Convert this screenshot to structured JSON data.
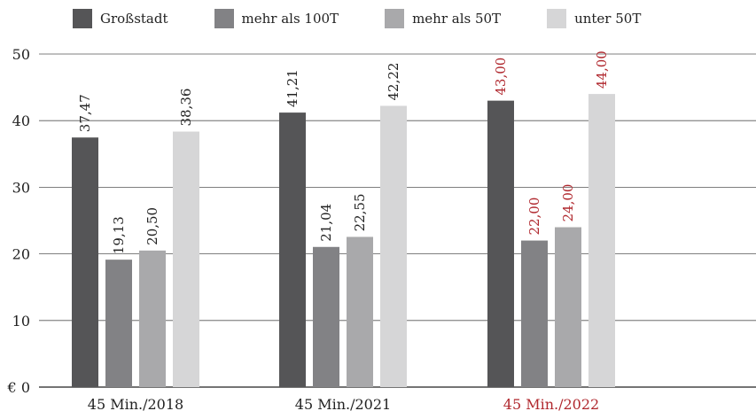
{
  "chart_data": {
    "type": "bar",
    "categories": [
      "45 Min./2018",
      "45 Min./2021",
      "45 Min./2022"
    ],
    "category_colors": [
      "#222222",
      "#222222",
      "#b0282e"
    ],
    "series": [
      {
        "name": "Großstadt",
        "color": "#555557",
        "values": [
          37.47,
          41.21,
          43.0
        ]
      },
      {
        "name": "mehr als 100T",
        "color": "#828285",
        "values": [
          19.13,
          21.04,
          22.0
        ]
      },
      {
        "name": "mehr als 50T",
        "color": "#a9a9ab",
        "values": [
          20.5,
          22.55,
          24.0
        ]
      },
      {
        "name": "unter 50T",
        "color": "#d6d6d7",
        "values": [
          38.36,
          42.22,
          44.0
        ]
      }
    ],
    "value_labels": [
      [
        "37,47",
        "19,13",
        "20,50",
        "38,36"
      ],
      [
        "41,21",
        "21,04",
        "22,55",
        "42,22"
      ],
      [
        "43,00",
        "22,00",
        "24,00",
        "44,00"
      ]
    ],
    "value_label_colors": [
      "#222222",
      "#222222",
      "#b0282e"
    ],
    "y_ticks": [
      "€ 0",
      "10",
      "20",
      "30",
      "40",
      "50"
    ],
    "y_tick_values": [
      0,
      10,
      20,
      30,
      40,
      50
    ],
    "ylim": [
      0,
      50
    ],
    "grid": true,
    "legend_position": "top",
    "title": "",
    "xlabel": "",
    "ylabel": ""
  }
}
